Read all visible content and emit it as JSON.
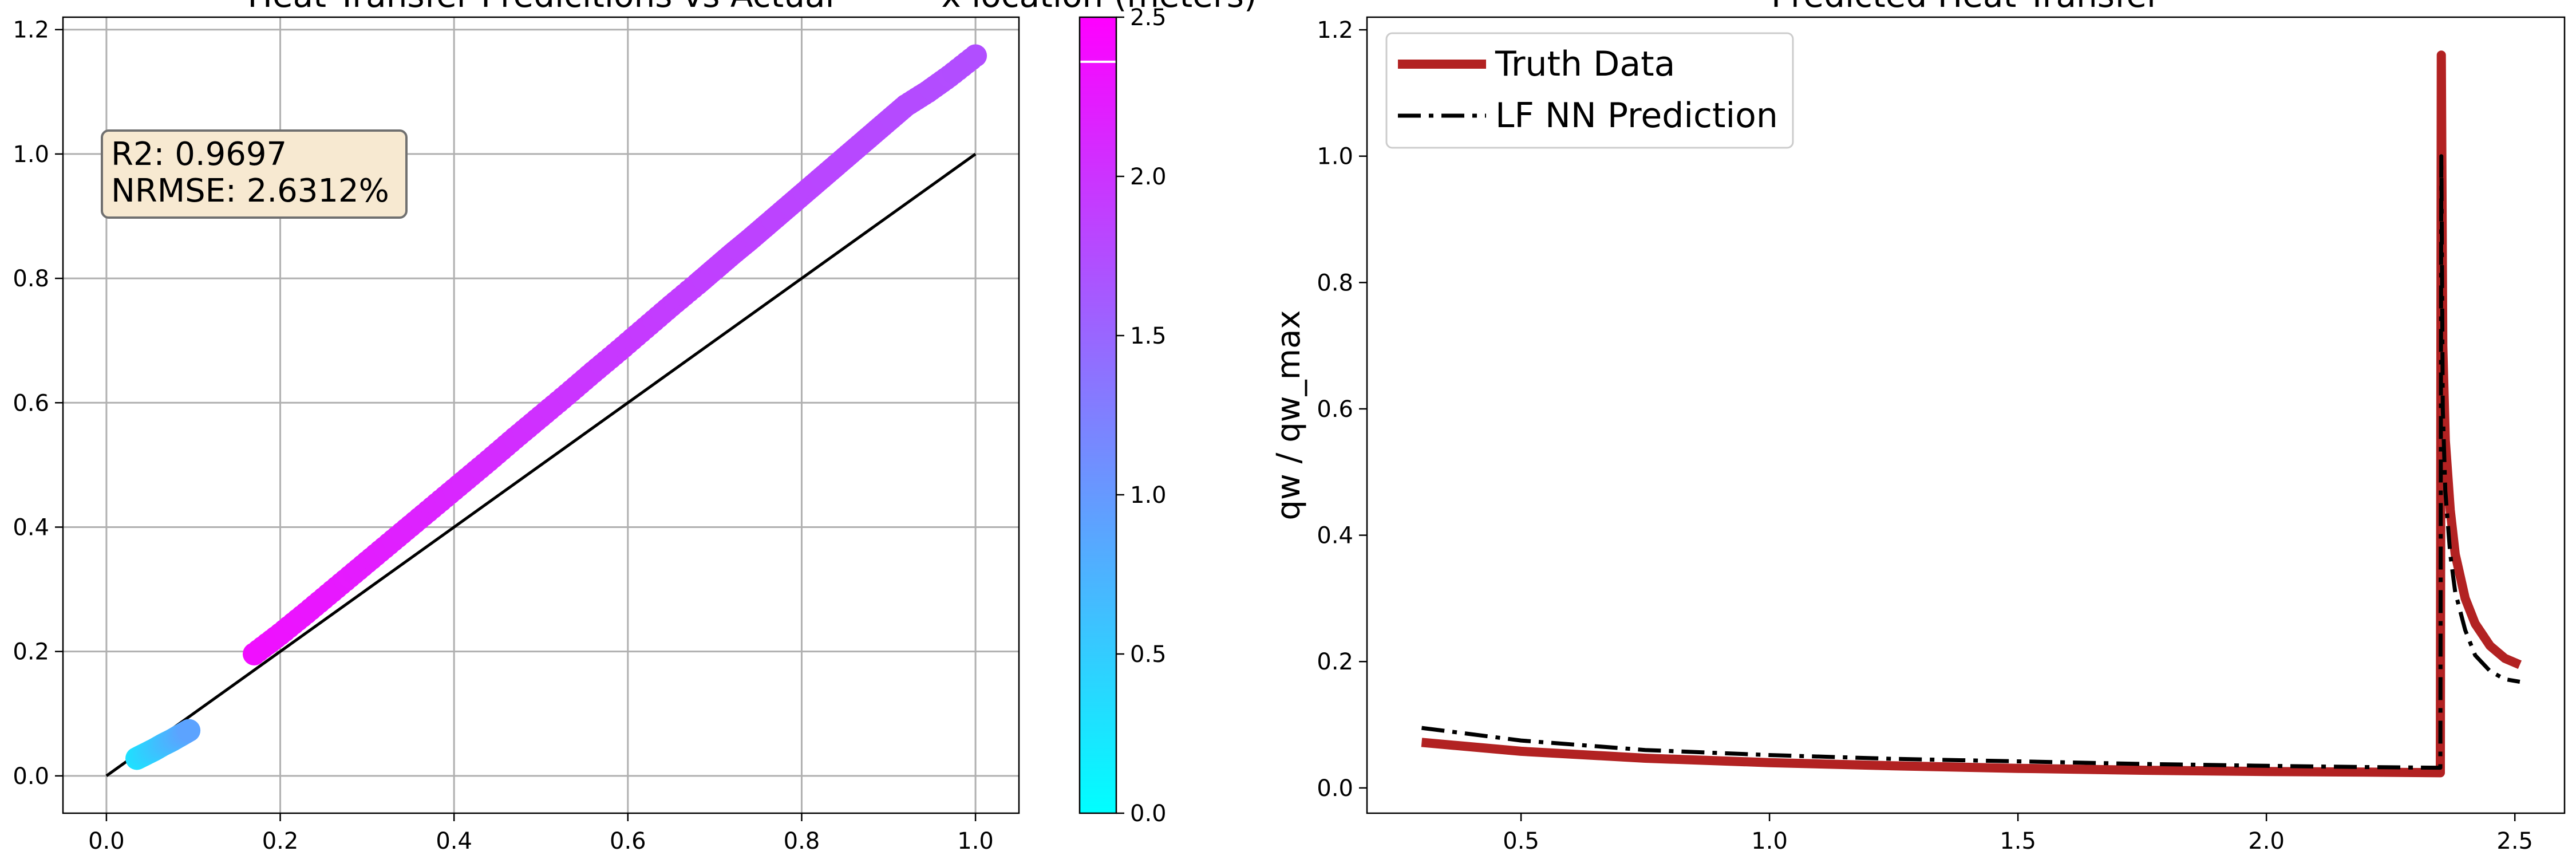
{
  "colors": {
    "cmap_start": "#00ffff",
    "cmap_end": "#ff00ff",
    "truth_line": "#b22222",
    "prediction_line": "#000000",
    "identity_line": "#000000",
    "stats_box_fill": "#f7e9d1",
    "stats_box_edge": "#707070",
    "colorbar_marker": "#ffffff"
  },
  "stats_box": {
    "r2": "R2: 0.9697",
    "nrmse": "NRMSE: 2.6312%"
  },
  "chart_data": [
    {
      "type": "scatter",
      "title": "Heat Transfer Predicitions vs Actual",
      "xlabel": "",
      "ylabel": "",
      "xlim": [
        -0.05,
        1.05
      ],
      "ylim": [
        -0.06,
        1.22
      ],
      "grid": true,
      "xticks": [
        "0.0",
        "0.2",
        "0.4",
        "0.6",
        "0.8",
        "1.0"
      ],
      "yticks": [
        "0.0",
        "0.2",
        "0.4",
        "0.6",
        "0.8",
        "1.0",
        "1.2"
      ],
      "reference_line": {
        "x": [
          0,
          1
        ],
        "y": [
          0,
          1
        ]
      },
      "colorbar": {
        "label": "x location (meters)",
        "range": [
          0,
          2.5
        ],
        "ticks": [
          "0.0",
          "0.5",
          "1.0",
          "1.5",
          "2.0",
          "2.5"
        ],
        "marker_value": 2.36
      },
      "series": [
        {
          "segment": "upstream",
          "x": [
            0.035,
            0.045,
            0.055,
            0.065,
            0.075,
            0.085,
            0.095
          ],
          "y": [
            0.028,
            0.035,
            0.042,
            0.05,
            0.057,
            0.065,
            0.073
          ],
          "color_value": [
            0.3,
            0.4,
            0.5,
            0.6,
            0.7,
            0.8,
            0.9
          ]
        },
        {
          "segment": "downstream",
          "x": [
            0.17,
            0.2,
            0.23,
            0.26,
            0.29,
            0.32,
            0.35,
            0.38,
            0.41,
            0.44,
            0.47,
            0.5,
            0.53,
            0.56,
            0.59,
            0.62,
            0.65,
            0.68,
            0.7,
            0.72,
            0.74,
            0.76,
            0.78,
            0.8,
            0.82,
            0.84,
            0.86,
            0.88,
            0.9,
            0.92,
            0.945,
            0.97,
            1.0
          ],
          "y": [
            0.196,
            0.228,
            0.262,
            0.297,
            0.332,
            0.367,
            0.402,
            0.437,
            0.472,
            0.507,
            0.543,
            0.578,
            0.613,
            0.649,
            0.684,
            0.72,
            0.756,
            0.791,
            0.815,
            0.839,
            0.862,
            0.886,
            0.91,
            0.934,
            0.958,
            0.982,
            1.006,
            1.03,
            1.054,
            1.078,
            1.1,
            1.125,
            1.158
          ],
          "color_value": [
            2.36,
            2.33,
            2.3,
            2.27,
            2.24,
            2.21,
            2.18,
            2.15,
            2.12,
            2.09,
            2.06,
            2.03,
            2.0,
            1.97,
            1.95,
            1.93,
            1.91,
            1.89,
            1.88,
            1.87,
            1.86,
            1.85,
            1.84,
            1.83,
            1.82,
            1.81,
            1.8,
            1.79,
            1.78,
            1.77,
            1.76,
            1.75,
            1.74
          ]
        }
      ]
    },
    {
      "type": "line",
      "title": "Predicted Heat Transfer",
      "xlabel": "",
      "ylabel": "qw / qw_max",
      "xlim": [
        0.19,
        2.6
      ],
      "ylim": [
        -0.04,
        1.22
      ],
      "grid": false,
      "legend_position": "upper-left",
      "xticks": [
        "0.5",
        "1.0",
        "1.5",
        "2.0",
        "2.5"
      ],
      "yticks": [
        "0.0",
        "0.2",
        "0.4",
        "0.6",
        "0.8",
        "1.0",
        "1.2"
      ],
      "series": [
        {
          "name": "Truth Data",
          "style": "solid",
          "x": [
            0.3,
            0.5,
            0.75,
            1.0,
            1.25,
            1.5,
            1.75,
            2.0,
            2.2,
            2.35,
            2.352,
            2.355,
            2.36,
            2.37,
            2.38,
            2.4,
            2.42,
            2.45,
            2.48,
            2.51
          ],
          "y": [
            0.072,
            0.058,
            0.047,
            0.04,
            0.035,
            0.031,
            0.028,
            0.026,
            0.025,
            0.024,
            1.16,
            0.7,
            0.55,
            0.44,
            0.37,
            0.3,
            0.26,
            0.225,
            0.205,
            0.195
          ]
        },
        {
          "name": "LF NN Prediction",
          "style": "dashdot",
          "x": [
            0.3,
            0.5,
            0.75,
            1.0,
            1.25,
            1.5,
            1.75,
            2.0,
            2.2,
            2.35,
            2.352,
            2.355,
            2.36,
            2.37,
            2.38,
            2.4,
            2.42,
            2.45,
            2.48,
            2.51
          ],
          "y": [
            0.095,
            0.075,
            0.06,
            0.052,
            0.046,
            0.042,
            0.038,
            0.035,
            0.033,
            0.032,
            1.0,
            0.6,
            0.47,
            0.37,
            0.31,
            0.25,
            0.21,
            0.185,
            0.172,
            0.168
          ]
        }
      ]
    }
  ]
}
